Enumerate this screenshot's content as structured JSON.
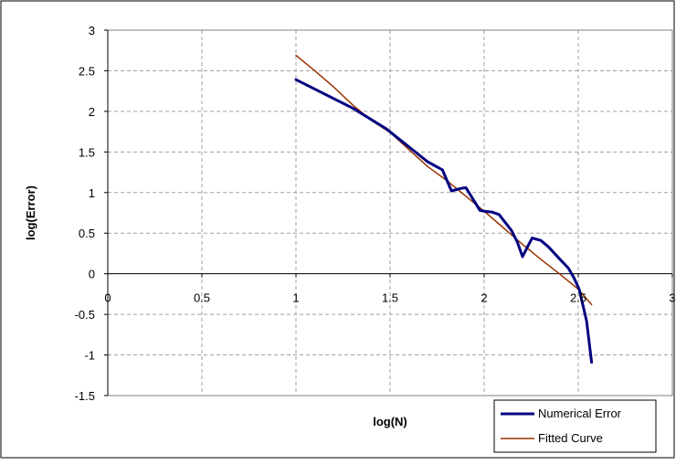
{
  "chart_data": {
    "type": "line",
    "title": "",
    "xlabel": "log(N)",
    "ylabel": "log(Error)",
    "xlim": [
      0,
      3
    ],
    "ylim": [
      -1.5,
      3
    ],
    "x_ticks": [
      0,
      0.5,
      1,
      1.5,
      2,
      2.5,
      3
    ],
    "x_tick_labels": [
      "0",
      "0.5",
      "1",
      "1.5",
      "2",
      "2.5",
      "3"
    ],
    "y_ticks": [
      -1.5,
      -1,
      -0.5,
      0,
      0.5,
      1,
      1.5,
      2,
      2.5,
      3
    ],
    "y_tick_labels": [
      "-1.5",
      "-1",
      "-0.5",
      "0",
      "0.5",
      "1",
      "1.5",
      "2",
      "2.5",
      "3"
    ],
    "grid": true,
    "legend_position": "bottom-right",
    "series": [
      {
        "name": "Numerical Error",
        "color": "#000080",
        "points": [
          [
            1.0,
            2.39
          ],
          [
            1.301,
            2.04
          ],
          [
            1.477,
            1.79
          ],
          [
            1.602,
            1.56
          ],
          [
            1.699,
            1.38
          ],
          [
            1.778,
            1.28
          ],
          [
            1.826,
            1.02
          ],
          [
            1.875,
            1.05
          ],
          [
            1.903,
            1.06
          ],
          [
            1.954,
            0.87
          ],
          [
            1.977,
            0.78
          ],
          [
            2.0,
            0.77
          ],
          [
            2.041,
            0.76
          ],
          [
            2.079,
            0.73
          ],
          [
            2.146,
            0.53
          ],
          [
            2.176,
            0.39
          ],
          [
            2.204,
            0.21
          ],
          [
            2.23,
            0.33
          ],
          [
            2.255,
            0.44
          ],
          [
            2.301,
            0.41
          ],
          [
            2.342,
            0.33
          ],
          [
            2.398,
            0.19
          ],
          [
            2.447,
            0.07
          ],
          [
            2.477,
            -0.05
          ],
          [
            2.505,
            -0.19
          ],
          [
            2.544,
            -0.58
          ],
          [
            2.571,
            -1.09
          ]
        ]
      },
      {
        "name": "Fitted Curve",
        "color": "#993300",
        "points": [
          [
            1.0,
            2.69
          ],
          [
            1.1,
            2.5
          ],
          [
            1.2,
            2.3
          ],
          [
            1.301,
            2.08
          ],
          [
            1.4,
            1.89
          ],
          [
            1.5,
            1.74
          ],
          [
            1.6,
            1.53
          ],
          [
            1.7,
            1.32
          ],
          [
            1.8,
            1.15
          ],
          [
            1.9,
            0.96
          ],
          [
            2.0,
            0.77
          ],
          [
            2.1,
            0.57
          ],
          [
            2.2,
            0.37
          ],
          [
            2.3,
            0.18
          ],
          [
            2.4,
            0.0
          ],
          [
            2.5,
            -0.19
          ],
          [
            2.571,
            -0.38
          ]
        ]
      }
    ]
  }
}
